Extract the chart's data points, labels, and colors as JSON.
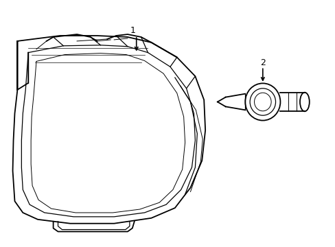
{
  "bg_color": "#ffffff",
  "line_color": "#000000",
  "lw_main": 1.3,
  "lw_inner": 0.9,
  "lw_thin": 0.7,
  "label1": "1",
  "label2": "2"
}
